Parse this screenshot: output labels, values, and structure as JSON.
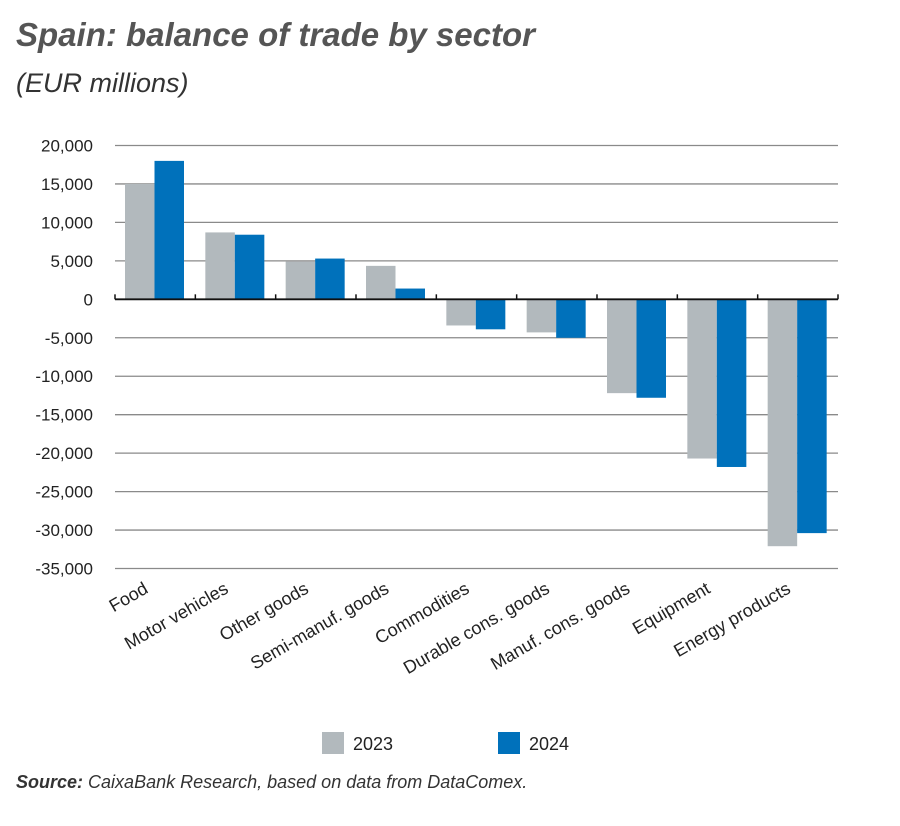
{
  "title": "Spain: balance of trade by sector",
  "subtitle": "(EUR millions)",
  "source_label": "Source:",
  "source_text": "CaixaBank Research, based on data from DataComex.",
  "chart_data": {
    "type": "bar",
    "title": "Spain: balance of trade by sector",
    "subtitle": "(EUR millions)",
    "categories": [
      "Food",
      "Motor vehicles",
      "Other goods",
      "Semi-manuf. goods",
      "Commodities",
      "Durable cons. goods",
      "Manuf. cons. goods",
      "Equipment",
      "Energy products"
    ],
    "series": [
      {
        "name": "2023",
        "color": "#b2b9bd",
        "values": [
          15000,
          8700,
          4900,
          4350,
          -3400,
          -4300,
          -12200,
          -20700,
          -32100
        ]
      },
      {
        "name": "2024",
        "color": "#0071bb",
        "values": [
          18000,
          8400,
          5300,
          1400,
          -3900,
          -5000,
          -12800,
          -21800,
          -30400
        ]
      }
    ],
    "ylim": [
      -35000,
      20000
    ],
    "yticks": [
      20000,
      15000,
      10000,
      5000,
      0,
      -5000,
      -10000,
      -15000,
      -20000,
      -25000,
      -30000,
      -35000
    ],
    "ytick_labels": [
      "20,000",
      "15,000",
      "10,000",
      "5,000",
      "0",
      "-5,000",
      "-10,000",
      "-15,000",
      "-20,000",
      "-25,000",
      "-30,000",
      "-35,000"
    ],
    "grid": true,
    "legend_position": "bottom"
  }
}
